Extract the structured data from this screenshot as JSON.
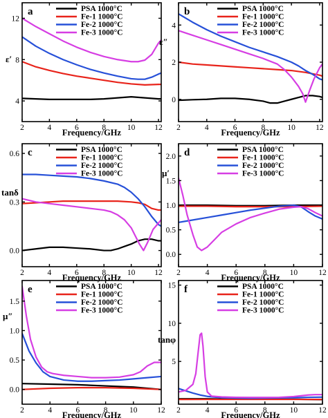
{
  "legend_labels": [
    "PSA 1000°C",
    "Fe-1 1000°C",
    "Fe-2 1000°C",
    "Fe-3 1000°C"
  ],
  "series_colors": [
    "#000000",
    "#e8231a",
    "#2650d8",
    "#d63ee3"
  ],
  "chart_data": [
    {
      "type": "line",
      "panel": "a",
      "ylabel": "ε′",
      "xlabel": "Frequency/GHz",
      "xlim": [
        2,
        12.2
      ],
      "ylim": [
        2.0,
        13.5
      ],
      "xticks": [
        2,
        4,
        6,
        8,
        10,
        12
      ],
      "yticks": [
        4,
        8,
        12
      ],
      "ytick_labels": [
        "4",
        "8",
        "12"
      ],
      "legend_position": "top-right",
      "series": [
        {
          "name": "PSA 1000°C",
          "x": [
            2,
            3,
            4,
            5,
            6,
            7,
            8,
            9,
            10,
            11,
            12,
            12.2
          ],
          "y": [
            4.25,
            4.2,
            4.15,
            4.15,
            4.15,
            4.15,
            4.2,
            4.3,
            4.4,
            4.3,
            4.2,
            4.2
          ]
        },
        {
          "name": "Fe-1 1000°C",
          "x": [
            2,
            3,
            4,
            5,
            6,
            7,
            8,
            9,
            10,
            11,
            12,
            12.2
          ],
          "y": [
            7.8,
            7.3,
            6.95,
            6.65,
            6.4,
            6.2,
            6.0,
            5.8,
            5.65,
            5.55,
            5.6,
            5.6
          ]
        },
        {
          "name": "Fe-2 1000°C",
          "x": [
            2,
            3,
            4,
            5,
            6,
            7,
            8,
            9,
            10,
            10.5,
            11,
            11.5,
            12,
            12.2
          ],
          "y": [
            10.2,
            9.3,
            8.6,
            8.0,
            7.5,
            7.05,
            6.7,
            6.4,
            6.15,
            6.1,
            6.1,
            6.3,
            6.6,
            6.7
          ]
        },
        {
          "name": "Fe-3 1000°C",
          "x": [
            2,
            3,
            4,
            5,
            6,
            7,
            8,
            9,
            10,
            10.5,
            11,
            11.5,
            12,
            12.2
          ],
          "y": [
            12.0,
            11.2,
            10.5,
            9.8,
            9.2,
            8.7,
            8.3,
            8.0,
            7.8,
            7.8,
            7.95,
            8.5,
            9.6,
            9.9
          ]
        }
      ]
    },
    {
      "type": "line",
      "panel": "b",
      "ylabel": "ε″",
      "xlabel": "Frequency/GHz",
      "xlim": [
        2,
        12.2
      ],
      "ylim": [
        -1.2,
        5.2
      ],
      "xticks": [
        2,
        4,
        6,
        8,
        10,
        12
      ],
      "yticks": [
        0,
        2,
        4
      ],
      "ytick_labels": [
        "0",
        "2",
        "4"
      ],
      "legend_position": "top-right",
      "series": [
        {
          "name": "PSA 1000°C",
          "x": [
            2,
            3,
            4,
            5,
            6,
            7,
            8,
            8.5,
            9,
            9.5,
            10,
            10.5,
            11,
            11.5,
            12,
            12.2
          ],
          "y": [
            -0.05,
            -0.02,
            0.0,
            0.05,
            0.05,
            0.0,
            -0.1,
            -0.2,
            -0.2,
            -0.1,
            0.0,
            0.1,
            0.2,
            0.2,
            0.15,
            0.1
          ]
        },
        {
          "name": "Fe-1 1000°C",
          "x": [
            2,
            3,
            4,
            5,
            6,
            7,
            8,
            9,
            10,
            11,
            12,
            12.2
          ],
          "y": [
            2.0,
            1.9,
            1.85,
            1.8,
            1.75,
            1.7,
            1.65,
            1.6,
            1.55,
            1.45,
            1.3,
            1.25
          ]
        },
        {
          "name": "Fe-2 1000°C",
          "x": [
            2,
            3,
            4,
            5,
            6,
            7,
            8,
            9,
            10,
            10.5,
            11,
            11.5,
            12,
            12.2
          ],
          "y": [
            4.6,
            4.15,
            3.75,
            3.4,
            3.1,
            2.8,
            2.55,
            2.3,
            2.0,
            1.8,
            1.55,
            1.35,
            1.1,
            1.05
          ]
        },
        {
          "name": "Fe-3 1000°C",
          "x": [
            2,
            3,
            4,
            5,
            6,
            7,
            8,
            9,
            9.5,
            10,
            10.5,
            10.8,
            11.0,
            11.3,
            11.6,
            12,
            12.2
          ],
          "y": [
            3.7,
            3.45,
            3.2,
            2.95,
            2.7,
            2.45,
            2.2,
            1.9,
            1.6,
            1.2,
            0.7,
            0.3,
            -0.15,
            0.5,
            1.1,
            1.7,
            1.9
          ]
        }
      ]
    },
    {
      "type": "line",
      "panel": "c",
      "ylabel": "tanδ",
      "xlabel": "Frequency/GHz",
      "xlim": [
        2,
        12.2
      ],
      "ylim": [
        -0.1,
        0.66
      ],
      "xticks": [
        2,
        4,
        6,
        8,
        10,
        12
      ],
      "yticks": [
        0.0,
        0.3,
        0.6
      ],
      "ytick_labels": [
        "0.0",
        "0.3",
        "0.6"
      ],
      "legend_position": "top-right",
      "series": [
        {
          "name": "PSA 1000°C",
          "x": [
            2,
            3,
            4,
            5,
            6,
            7,
            8,
            8.5,
            9,
            9.5,
            10,
            10.5,
            11,
            11.5,
            12,
            12.2
          ],
          "y": [
            0.0,
            0.01,
            0.02,
            0.02,
            0.015,
            0.01,
            0.0,
            0.0,
            0.01,
            0.025,
            0.04,
            0.06,
            0.07,
            0.07,
            0.06,
            0.06
          ]
        },
        {
          "name": "Fe-1 1000°C",
          "x": [
            2,
            3,
            4,
            5,
            6,
            7,
            8,
            9,
            10,
            10.5,
            11,
            11.5,
            12,
            12.2
          ],
          "y": [
            0.29,
            0.295,
            0.3,
            0.305,
            0.305,
            0.305,
            0.305,
            0.305,
            0.3,
            0.295,
            0.285,
            0.26,
            0.25,
            0.25
          ]
        },
        {
          "name": "Fe-2 1000°C",
          "x": [
            2,
            3,
            4,
            5,
            6,
            7,
            8,
            9,
            9.5,
            10,
            10.5,
            11,
            11.5,
            12,
            12.2
          ],
          "y": [
            0.47,
            0.47,
            0.465,
            0.46,
            0.455,
            0.445,
            0.43,
            0.41,
            0.39,
            0.36,
            0.32,
            0.27,
            0.21,
            0.16,
            0.15
          ]
        },
        {
          "name": "Fe-3 1000°C",
          "x": [
            2,
            3,
            4,
            5,
            6,
            7,
            8,
            8.5,
            9,
            9.5,
            10,
            10.3,
            10.6,
            10.9,
            11.2,
            11.6,
            12,
            12.2
          ],
          "y": [
            0.32,
            0.3,
            0.29,
            0.28,
            0.27,
            0.26,
            0.25,
            0.24,
            0.22,
            0.19,
            0.14,
            0.09,
            0.04,
            0.0,
            0.05,
            0.13,
            0.17,
            0.19
          ]
        }
      ]
    },
    {
      "type": "line",
      "panel": "d",
      "ylabel": "μ′",
      "xlabel": "Frequency/GHz",
      "xlim": [
        2,
        12
      ],
      "ylim": [
        -0.25,
        2.25
      ],
      "xticks": [
        2,
        4,
        6,
        8,
        10,
        12
      ],
      "yticks": [
        0.0,
        0.5,
        1.0,
        1.5,
        2.0
      ],
      "ytick_labels": [
        "0.0",
        "0.5",
        "1.0",
        "1.5",
        "2.0"
      ],
      "legend_position": "top-right",
      "series": [
        {
          "name": "PSA 1000°C",
          "x": [
            2,
            4,
            6,
            8,
            10,
            12
          ],
          "y": [
            1.0,
            1.0,
            0.99,
            0.99,
            1.0,
            1.0
          ]
        },
        {
          "name": "Fe-1 1000°C",
          "x": [
            2,
            4,
            6,
            8,
            10,
            12
          ],
          "y": [
            0.98,
            0.98,
            0.97,
            0.97,
            0.97,
            0.98
          ]
        },
        {
          "name": "Fe-2 1000°C",
          "x": [
            2,
            3,
            4,
            5,
            6,
            7,
            8,
            9,
            10,
            10.5,
            11,
            11.5,
            12
          ],
          "y": [
            0.65,
            0.7,
            0.75,
            0.8,
            0.85,
            0.9,
            0.94,
            0.98,
            1.0,
            0.97,
            0.87,
            0.78,
            0.72
          ]
        },
        {
          "name": "Fe-3 1000°C",
          "x": [
            2,
            2.3,
            2.6,
            3.0,
            3.3,
            3.6,
            4.0,
            4.5,
            5,
            6,
            7,
            8,
            9,
            10,
            10.5,
            11,
            11.5,
            12
          ],
          "y": [
            1.55,
            1.2,
            0.8,
            0.4,
            0.15,
            0.08,
            0.15,
            0.3,
            0.45,
            0.62,
            0.75,
            0.84,
            0.92,
            0.96,
            0.97,
            0.93,
            0.85,
            0.78
          ]
        }
      ]
    },
    {
      "type": "line",
      "panel": "e",
      "ylabel": "μ″",
      "xlabel": "Frequency/GHz",
      "xlim": [
        2,
        12
      ],
      "ylim": [
        -0.25,
        1.85
      ],
      "xticks": [
        2,
        4,
        6,
        8,
        10,
        12
      ],
      "yticks": [
        0.0,
        0.5,
        1.0,
        1.5
      ],
      "ytick_labels": [
        "0.0",
        "0.5",
        "1.0",
        "1.5"
      ],
      "legend_position": "top-right",
      "series": [
        {
          "name": "PSA 1000°C",
          "x": [
            2,
            4,
            6,
            8,
            10,
            12
          ],
          "y": [
            0.1,
            0.09,
            0.08,
            0.06,
            0.04,
            0.0
          ]
        },
        {
          "name": "Fe-1 1000°C",
          "x": [
            2,
            4,
            6,
            8,
            10,
            12
          ],
          "y": [
            0.0,
            0.02,
            0.03,
            0.03,
            0.02,
            0.0
          ]
        },
        {
          "name": "Fe-2 1000°C",
          "x": [
            2,
            2.5,
            3,
            3.5,
            4,
            5,
            6,
            7,
            8,
            9,
            10,
            11,
            12
          ],
          "y": [
            0.95,
            0.65,
            0.45,
            0.3,
            0.22,
            0.16,
            0.14,
            0.14,
            0.15,
            0.16,
            0.18,
            0.2,
            0.22
          ]
        },
        {
          "name": "Fe-3 1000°C",
          "x": [
            2,
            2.3,
            2.6,
            3.0,
            3.4,
            3.8,
            4.2,
            5,
            6,
            7,
            8,
            9,
            10,
            10.5,
            11,
            11.5,
            12
          ],
          "y": [
            1.75,
            1.25,
            0.85,
            0.55,
            0.38,
            0.3,
            0.27,
            0.24,
            0.22,
            0.2,
            0.2,
            0.21,
            0.25,
            0.3,
            0.4,
            0.46,
            0.46
          ]
        }
      ]
    },
    {
      "type": "line",
      "panel": "f",
      "ylabel": "tanφ",
      "xlabel": "Frequency/GHz",
      "xlim": [
        2,
        12
      ],
      "ylim": [
        -0.6,
        15.6
      ],
      "xticks": [
        2,
        4,
        6,
        8,
        10,
        12
      ],
      "yticks": [
        5,
        10,
        15
      ],
      "ytick_labels": [
        "5",
        "10",
        "15"
      ],
      "legend_position": "top-right",
      "series": [
        {
          "name": "PSA 1000°C",
          "x": [
            2,
            4,
            6,
            8,
            10,
            12
          ],
          "y": [
            0.1,
            0.1,
            0.05,
            0.05,
            0.05,
            0.0
          ]
        },
        {
          "name": "Fe-1 1000°C",
          "x": [
            2,
            4,
            6,
            8,
            10,
            12
          ],
          "y": [
            0.02,
            0.03,
            0.03,
            0.03,
            0.03,
            0.02
          ]
        },
        {
          "name": "Fe-2 1000°C",
          "x": [
            2,
            2.5,
            3,
            3.5,
            4,
            5,
            6,
            7,
            8,
            9,
            10,
            11,
            12
          ],
          "y": [
            1.45,
            1.15,
            0.85,
            0.6,
            0.42,
            0.25,
            0.2,
            0.18,
            0.2,
            0.22,
            0.25,
            0.3,
            0.32
          ]
        },
        {
          "name": "Fe-3 1000°C",
          "x": [
            2,
            2.5,
            3.0,
            3.2,
            3.35,
            3.5,
            3.6,
            3.7,
            3.85,
            4.0,
            4.3,
            5,
            6,
            7,
            8,
            9,
            10,
            10.5,
            11,
            11.5,
            12
          ],
          "y": [
            1.0,
            1.2,
            2.0,
            3.4,
            6.0,
            8.5,
            8.7,
            7.0,
            3.0,
            1.0,
            0.45,
            0.35,
            0.3,
            0.28,
            0.28,
            0.3,
            0.4,
            0.5,
            0.6,
            0.65,
            0.65
          ]
        }
      ]
    }
  ]
}
